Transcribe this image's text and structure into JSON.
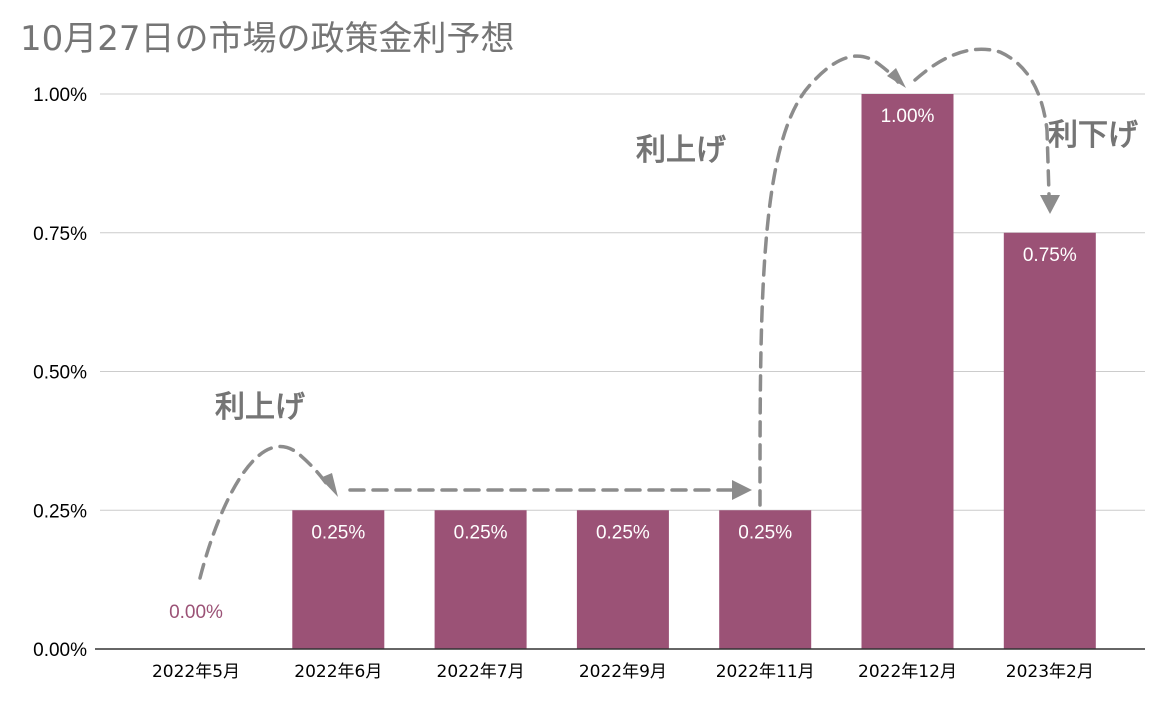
{
  "chart_data": {
    "type": "bar",
    "title": "10月27日の市場の政策金利予想",
    "categories": [
      "2022年5月",
      "2022年6月",
      "2022年7月",
      "2022年9月",
      "2022年11月",
      "2022年12月",
      "2023年2月"
    ],
    "values": [
      0.0,
      0.25,
      0.25,
      0.25,
      0.25,
      1.0,
      0.75
    ],
    "data_labels": [
      "0.00%",
      "0.25%",
      "0.25%",
      "0.25%",
      "0.25%",
      "1.00%",
      "0.75%"
    ],
    "y_ticks": [
      0.0,
      0.25,
      0.5,
      0.75,
      1.0
    ],
    "y_tick_labels": [
      "0.00%",
      "0.25%",
      "0.50%",
      "0.75%",
      "1.00%"
    ],
    "ylim": [
      0,
      1.0
    ],
    "xlabel": "",
    "ylabel": "",
    "grid": true,
    "legend": "none",
    "colors": {
      "bar": "#9b5276",
      "zero_label": "#9b5276",
      "inside_label": "#ffffff",
      "annotation": "#757575",
      "arrow": "#8c8c8c"
    },
    "annotations": [
      {
        "text": "利上げ",
        "from": "2022年5月",
        "to": "2022年6月"
      },
      {
        "text": "利上げ",
        "from": "2022年11月",
        "to": "2022年12月"
      },
      {
        "text": "利下げ",
        "from": "2022年12月",
        "to": "2023年2月"
      }
    ]
  }
}
